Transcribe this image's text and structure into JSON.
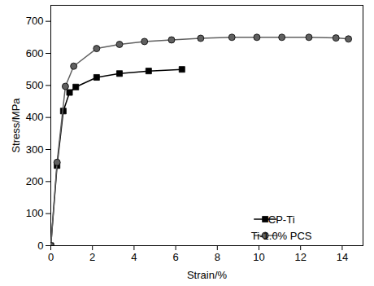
{
  "chart_data": {
    "type": "line",
    "x_label": "Strain/%",
    "y_label": "Stress/MPa",
    "xlim": [
      0,
      15
    ],
    "xticks": [
      0,
      2,
      4,
      6,
      8,
      10,
      12,
      14
    ],
    "ylim": [
      0,
      750
    ],
    "yticks": [
      0,
      100,
      200,
      300,
      400,
      500,
      600,
      700
    ],
    "grid": false,
    "legend": "lower right",
    "series": [
      {
        "name": "CP-Ti",
        "color": "#000000",
        "marker": "square",
        "line_style": "solid",
        "x": [
          0,
          0.3,
          0.6,
          0.9,
          1.2,
          2.2,
          3.3,
          4.7,
          6.3
        ],
        "values": [
          0,
          250,
          420,
          478,
          495,
          525,
          537,
          545,
          550
        ]
      },
      {
        "name": "Ti-1.0% PCS",
        "color": "#606060",
        "marker": "circle",
        "line_style": "solid",
        "x": [
          0,
          0.3,
          0.7,
          1.1,
          2.2,
          3.3,
          4.5,
          5.8,
          7.2,
          8.7,
          9.9,
          11.1,
          12.4,
          13.7,
          14.3
        ],
        "values": [
          0,
          260,
          497,
          560,
          615,
          628,
          637,
          642,
          647,
          650,
          650,
          650,
          650,
          648,
          645
        ]
      }
    ]
  }
}
